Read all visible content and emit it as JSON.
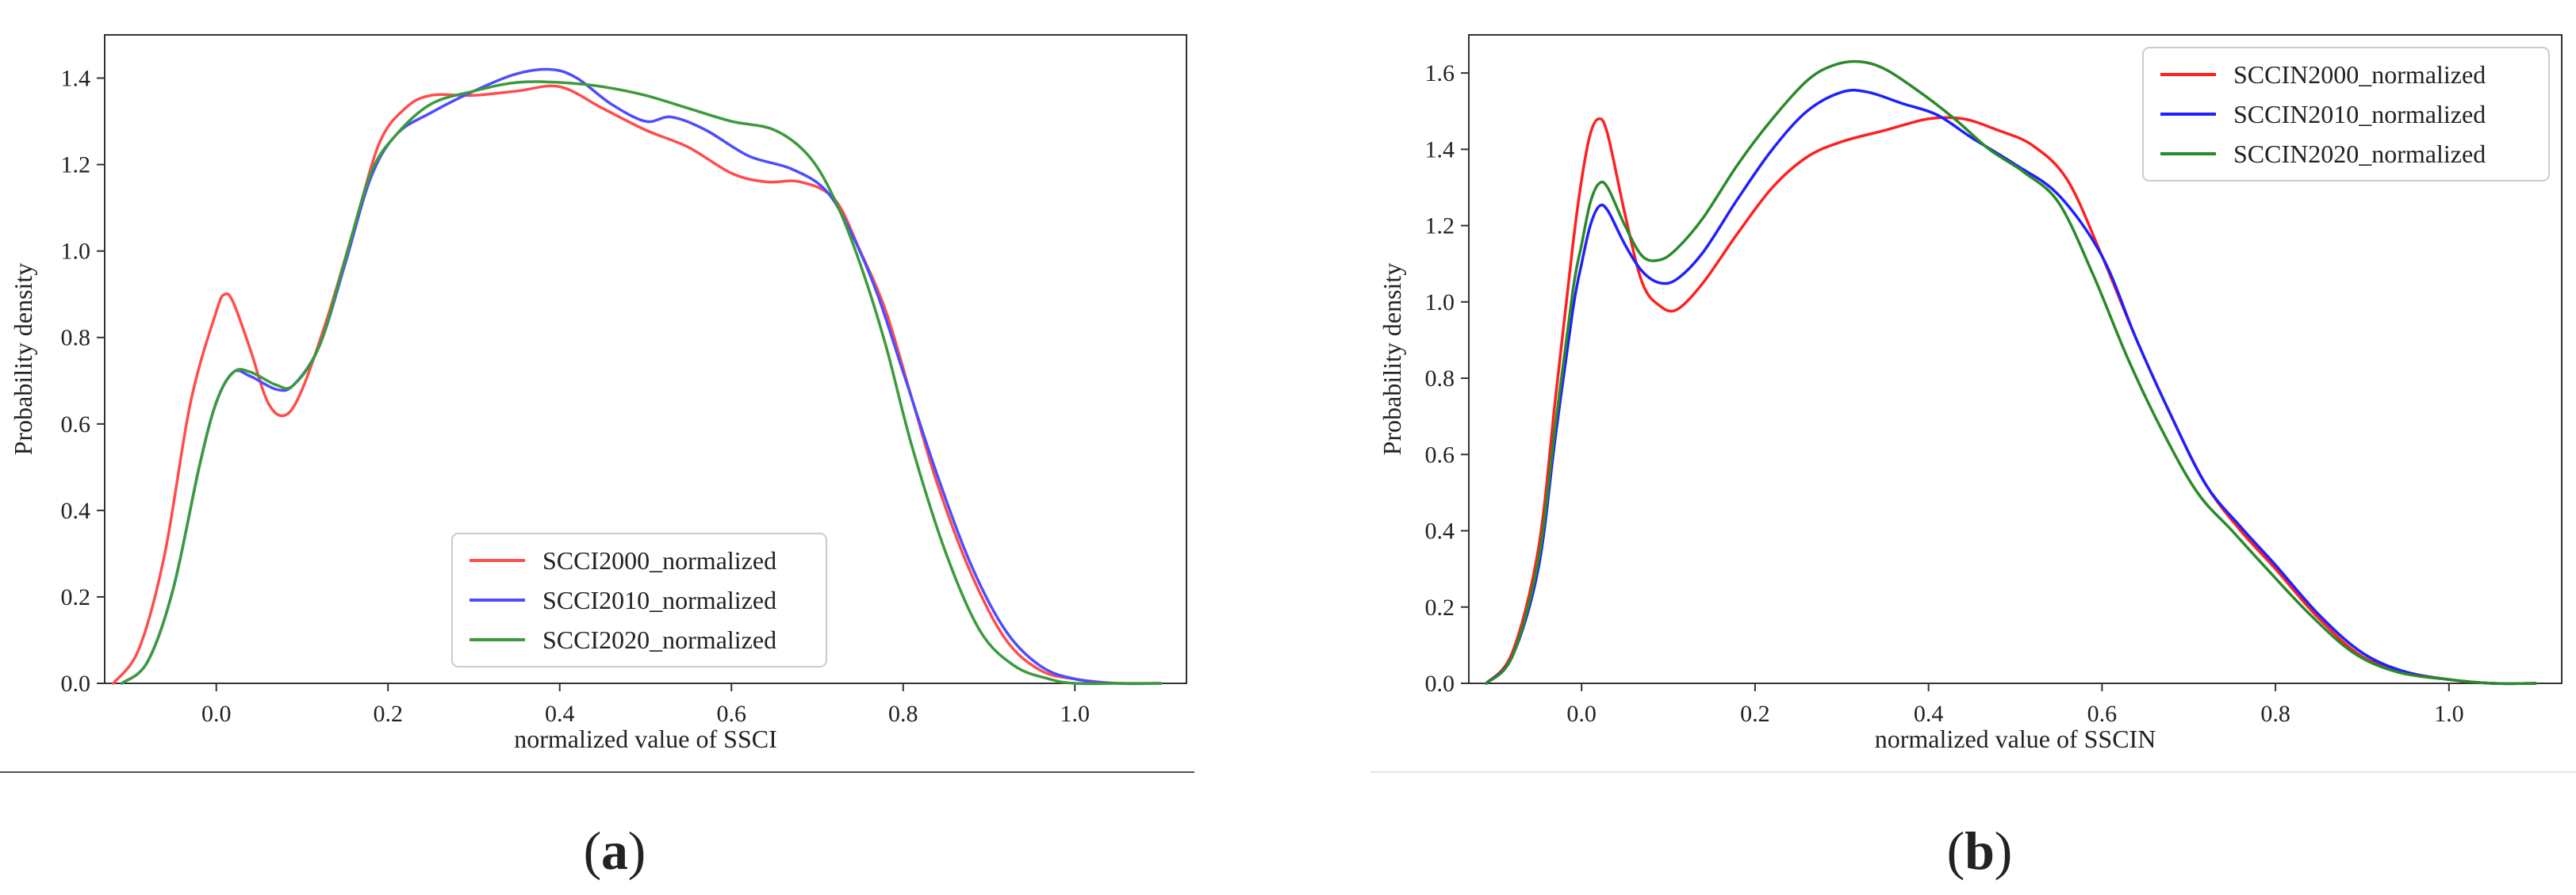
{
  "panels": [
    {
      "caption": "a"
    },
    {
      "caption": "b"
    }
  ],
  "chart_data": [
    {
      "type": "line",
      "title": "",
      "xlabel": "normalized value of SSCI",
      "ylabel": "Probability density",
      "xlim": [
        -0.13,
        1.13
      ],
      "ylim": [
        0,
        1.5
      ],
      "xticks": [
        0.0,
        0.2,
        0.4,
        0.6,
        0.8,
        1.0
      ],
      "xtick_labels": [
        "0.0",
        "0.2",
        "0.4",
        "0.6",
        "0.8",
        "1.0"
      ],
      "yticks": [
        0.0,
        0.2,
        0.4,
        0.6,
        0.8,
        1.0,
        1.2,
        1.4
      ],
      "ytick_labels": [
        "0.0",
        "0.2",
        "0.4",
        "0.6",
        "0.8",
        "1.0",
        "1.2",
        "1.4"
      ],
      "grid": false,
      "legend_position": "bottom-center",
      "series": [
        {
          "name": "SCCI2000_normalized",
          "color": "#ff4d4d",
          "x": [
            -0.12,
            -0.09,
            -0.06,
            -0.03,
            0.0,
            0.01,
            0.02,
            0.04,
            0.06,
            0.08,
            0.1,
            0.13,
            0.16,
            0.19,
            0.22,
            0.25,
            0.3,
            0.35,
            0.4,
            0.45,
            0.5,
            0.55,
            0.6,
            0.64,
            0.68,
            0.72,
            0.75,
            0.78,
            0.81,
            0.84,
            0.88,
            0.92,
            0.96,
            1.0,
            1.05,
            1.1
          ],
          "y": [
            0.0,
            0.08,
            0.3,
            0.65,
            0.86,
            0.9,
            0.88,
            0.77,
            0.65,
            0.62,
            0.68,
            0.85,
            1.05,
            1.25,
            1.33,
            1.36,
            1.36,
            1.37,
            1.38,
            1.33,
            1.28,
            1.24,
            1.18,
            1.16,
            1.16,
            1.12,
            1.0,
            0.86,
            0.66,
            0.46,
            0.25,
            0.1,
            0.03,
            0.01,
            0.0,
            0.0
          ]
        },
        {
          "name": "SCCI2010_normalized",
          "color": "#4d4dff",
          "x": [
            -0.11,
            -0.08,
            -0.05,
            -0.02,
            0.0,
            0.02,
            0.04,
            0.07,
            0.09,
            0.12,
            0.15,
            0.18,
            0.21,
            0.25,
            0.3,
            0.35,
            0.39,
            0.42,
            0.46,
            0.5,
            0.53,
            0.57,
            0.62,
            0.67,
            0.71,
            0.74,
            0.77,
            0.8,
            0.84,
            0.88,
            0.92,
            0.96,
            1.0,
            1.05,
            1.1
          ],
          "y": [
            0.0,
            0.05,
            0.22,
            0.5,
            0.65,
            0.72,
            0.71,
            0.68,
            0.69,
            0.78,
            0.97,
            1.17,
            1.27,
            1.32,
            1.37,
            1.41,
            1.42,
            1.4,
            1.34,
            1.3,
            1.31,
            1.28,
            1.22,
            1.19,
            1.14,
            1.04,
            0.9,
            0.72,
            0.48,
            0.27,
            0.12,
            0.04,
            0.01,
            0.0,
            0.0
          ]
        },
        {
          "name": "SCCI2020_normalized",
          "color": "#3c9a3c",
          "x": [
            -0.11,
            -0.08,
            -0.05,
            -0.02,
            0.0,
            0.02,
            0.04,
            0.07,
            0.09,
            0.12,
            0.15,
            0.18,
            0.21,
            0.25,
            0.3,
            0.35,
            0.4,
            0.45,
            0.5,
            0.55,
            0.6,
            0.65,
            0.69,
            0.72,
            0.75,
            0.78,
            0.81,
            0.85,
            0.89,
            0.93,
            0.97,
            1.0,
            1.05,
            1.1
          ],
          "y": [
            0.0,
            0.05,
            0.22,
            0.5,
            0.65,
            0.72,
            0.72,
            0.69,
            0.69,
            0.78,
            0.98,
            1.18,
            1.27,
            1.34,
            1.37,
            1.39,
            1.39,
            1.38,
            1.36,
            1.33,
            1.3,
            1.28,
            1.22,
            1.12,
            0.97,
            0.78,
            0.55,
            0.3,
            0.12,
            0.04,
            0.01,
            0.0,
            0.0,
            0.0
          ]
        }
      ]
    },
    {
      "type": "line",
      "title": "",
      "xlabel": "normalized value of SSCIN",
      "ylabel": "Probability density",
      "xlim": [
        -0.13,
        1.13
      ],
      "ylim": [
        0,
        1.7
      ],
      "xticks": [
        0.0,
        0.2,
        0.4,
        0.6,
        0.8,
        1.0
      ],
      "xtick_labels": [
        "0.0",
        "0.2",
        "0.4",
        "0.6",
        "0.8",
        "1.0"
      ],
      "yticks": [
        0.0,
        0.2,
        0.4,
        0.6,
        0.8,
        1.0,
        1.2,
        1.4,
        1.6
      ],
      "ytick_labels": [
        "0.0",
        "0.2",
        "0.4",
        "0.6",
        "0.8",
        "1.0",
        "1.2",
        "1.4",
        "1.6"
      ],
      "grid": false,
      "legend_position": "top-right",
      "series": [
        {
          "name": "SCCIN2000_normalized",
          "color": "#ff2020",
          "x": [
            -0.11,
            -0.08,
            -0.05,
            -0.03,
            -0.01,
            0.0,
            0.01,
            0.02,
            0.03,
            0.05,
            0.07,
            0.09,
            0.11,
            0.14,
            0.18,
            0.22,
            0.26,
            0.3,
            0.35,
            0.4,
            0.44,
            0.48,
            0.52,
            0.56,
            0.6,
            0.64,
            0.68,
            0.72,
            0.76,
            0.8,
            0.85,
            0.9,
            0.95,
            1.0,
            1.05,
            1.1
          ],
          "y": [
            0.0,
            0.08,
            0.35,
            0.75,
            1.15,
            1.32,
            1.44,
            1.48,
            1.44,
            1.23,
            1.05,
            0.99,
            0.98,
            1.05,
            1.18,
            1.3,
            1.38,
            1.42,
            1.45,
            1.48,
            1.48,
            1.45,
            1.41,
            1.32,
            1.12,
            0.9,
            0.7,
            0.52,
            0.4,
            0.3,
            0.17,
            0.07,
            0.03,
            0.01,
            0.0,
            0.0
          ]
        },
        {
          "name": "SCCIN2010_normalized",
          "color": "#2020ff",
          "x": [
            -0.11,
            -0.08,
            -0.05,
            -0.03,
            -0.01,
            0.0,
            0.01,
            0.02,
            0.03,
            0.05,
            0.07,
            0.09,
            0.11,
            0.14,
            0.18,
            0.22,
            0.26,
            0.3,
            0.33,
            0.37,
            0.41,
            0.45,
            0.5,
            0.55,
            0.6,
            0.64,
            0.68,
            0.72,
            0.76,
            0.8,
            0.85,
            0.9,
            0.95,
            1.0,
            1.05,
            1.1
          ],
          "y": [
            0.0,
            0.07,
            0.3,
            0.65,
            0.98,
            1.1,
            1.2,
            1.25,
            1.24,
            1.15,
            1.08,
            1.05,
            1.06,
            1.13,
            1.27,
            1.4,
            1.5,
            1.55,
            1.55,
            1.52,
            1.49,
            1.43,
            1.36,
            1.28,
            1.12,
            0.9,
            0.7,
            0.52,
            0.41,
            0.31,
            0.18,
            0.08,
            0.03,
            0.01,
            0.0,
            0.0
          ]
        },
        {
          "name": "SCCIN2020_normalized",
          "color": "#2a8a2a",
          "x": [
            -0.11,
            -0.08,
            -0.05,
            -0.03,
            -0.01,
            0.0,
            0.01,
            0.02,
            0.03,
            0.05,
            0.07,
            0.09,
            0.11,
            0.14,
            0.18,
            0.22,
            0.26,
            0.29,
            0.32,
            0.35,
            0.39,
            0.43,
            0.47,
            0.51,
            0.55,
            0.59,
            0.63,
            0.67,
            0.71,
            0.75,
            0.79,
            0.84,
            0.89,
            0.94,
            1.0,
            1.05,
            1.1
          ],
          "y": [
            0.0,
            0.07,
            0.32,
            0.68,
            1.03,
            1.15,
            1.26,
            1.31,
            1.3,
            1.2,
            1.12,
            1.11,
            1.14,
            1.22,
            1.36,
            1.48,
            1.58,
            1.62,
            1.63,
            1.61,
            1.55,
            1.48,
            1.4,
            1.34,
            1.26,
            1.07,
            0.85,
            0.66,
            0.5,
            0.4,
            0.3,
            0.18,
            0.08,
            0.03,
            0.01,
            0.0,
            0.0
          ]
        }
      ]
    }
  ]
}
